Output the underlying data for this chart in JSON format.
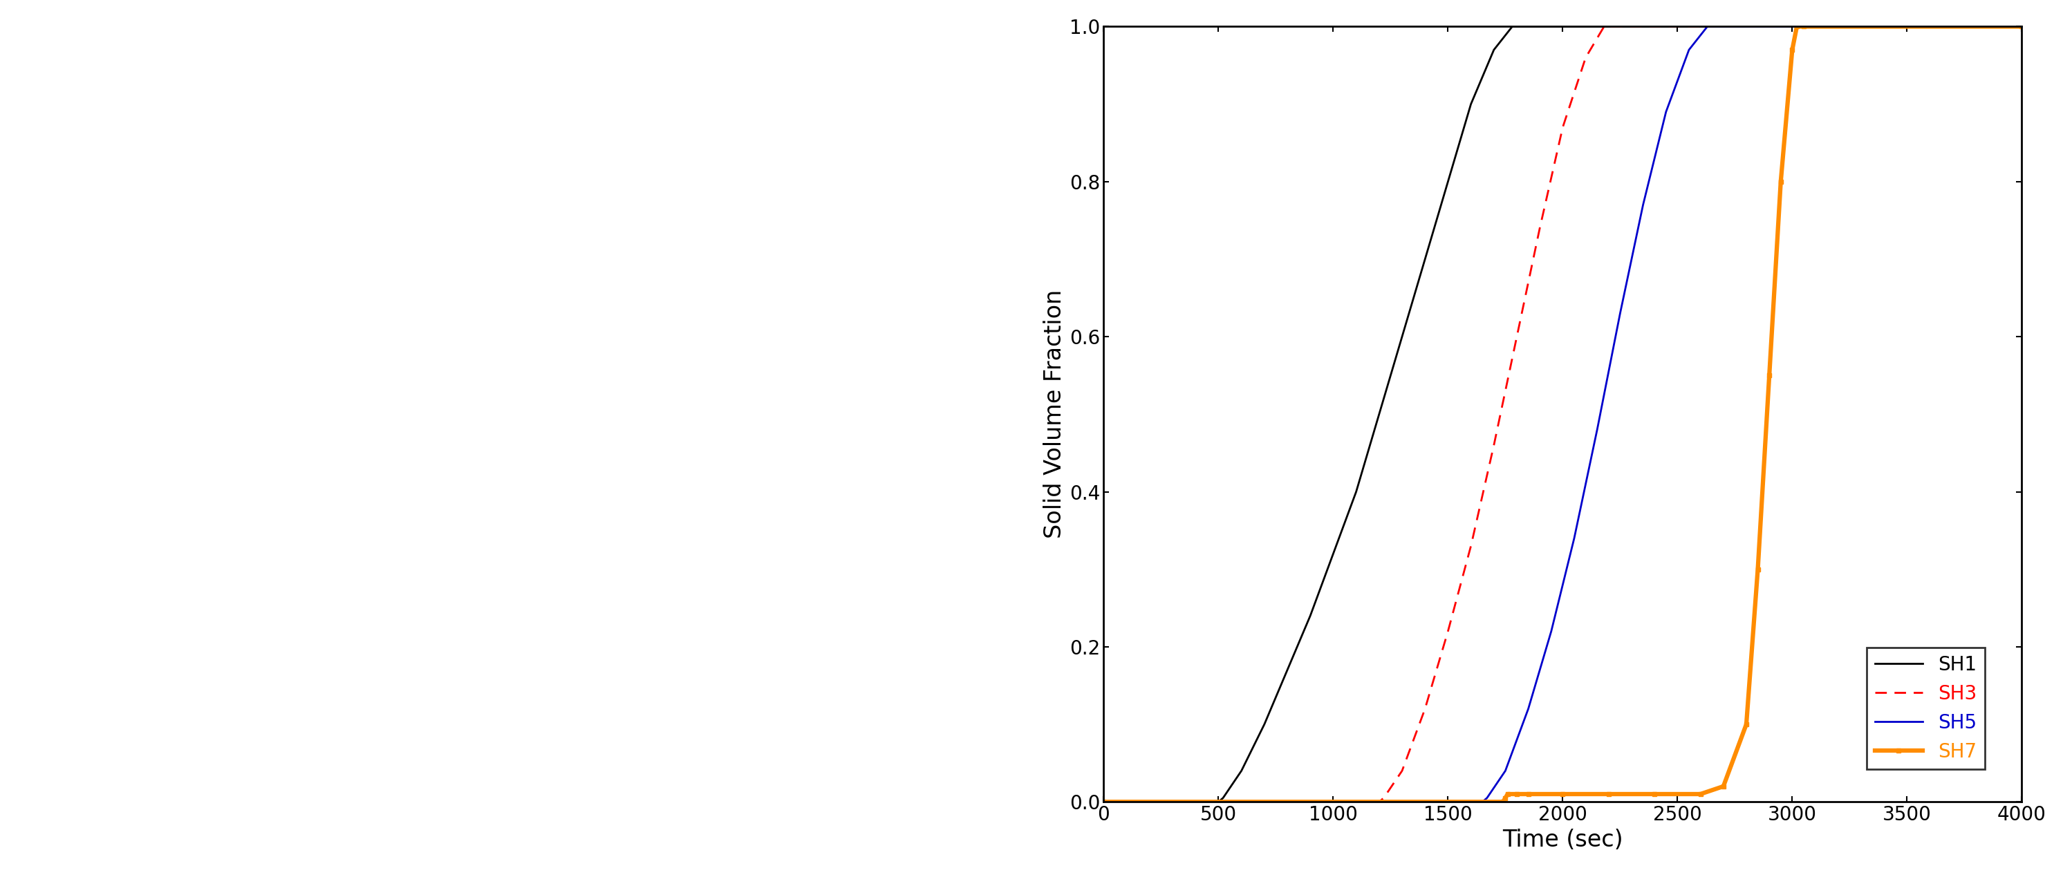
{
  "xlabel": "Time (sec)",
  "ylabel": "Solid Volume Fraction",
  "xlim": [
    0,
    4000
  ],
  "ylim": [
    0,
    1.0
  ],
  "xticks": [
    0,
    500,
    1000,
    1500,
    2000,
    2500,
    3000,
    3500,
    4000
  ],
  "yticks": [
    0.0,
    0.2,
    0.4,
    0.6,
    0.8,
    1.0
  ],
  "SH1": {
    "color": "#000000",
    "linestyle": "solid",
    "linewidth": 2.0,
    "x": [
      0,
      500,
      520,
      600,
      700,
      800,
      900,
      1000,
      1100,
      1200,
      1300,
      1400,
      1500,
      1600,
      1700,
      1780,
      1800,
      4000
    ],
    "y": [
      0,
      0,
      0.005,
      0.04,
      0.1,
      0.17,
      0.24,
      0.32,
      0.4,
      0.5,
      0.6,
      0.7,
      0.8,
      0.9,
      0.97,
      1.0,
      1.0,
      1.0
    ]
  },
  "SH3": {
    "color": "#ff0000",
    "linestyle": "dashed",
    "linewidth": 2.0,
    "x": [
      0,
      1200,
      1220,
      1300,
      1400,
      1500,
      1600,
      1700,
      1800,
      1900,
      2000,
      2100,
      2180,
      2200,
      4000
    ],
    "y": [
      0,
      0,
      0.005,
      0.04,
      0.12,
      0.22,
      0.33,
      0.46,
      0.6,
      0.74,
      0.87,
      0.96,
      1.0,
      1.0,
      1.0
    ]
  },
  "SH5": {
    "color": "#0000cc",
    "linestyle": "solid",
    "linewidth": 2.0,
    "x": [
      0,
      1650,
      1670,
      1750,
      1850,
      1950,
      2050,
      2150,
      2250,
      2350,
      2450,
      2550,
      2630,
      2650,
      4000
    ],
    "y": [
      0,
      0,
      0.005,
      0.04,
      0.12,
      0.22,
      0.34,
      0.48,
      0.63,
      0.77,
      0.89,
      0.97,
      1.0,
      1.0,
      1.0
    ]
  },
  "SH7": {
    "color": "#ff8c00",
    "linestyle": "solid",
    "linewidth": 4.5,
    "marker": "s",
    "markersize": 5,
    "x": [
      0,
      1740,
      1750,
      1760,
      1800,
      1850,
      2000,
      2200,
      2400,
      2600,
      2700,
      2800,
      2850,
      2900,
      2950,
      3000,
      3020,
      3050,
      4000
    ],
    "y": [
      0,
      0,
      0.005,
      0.01,
      0.01,
      0.01,
      0.01,
      0.01,
      0.01,
      0.01,
      0.02,
      0.1,
      0.3,
      0.55,
      0.8,
      0.97,
      1.0,
      1.0,
      1.0
    ]
  },
  "axis_fontsize": 24,
  "tick_fontsize": 20,
  "legend_fontsize": 20
}
